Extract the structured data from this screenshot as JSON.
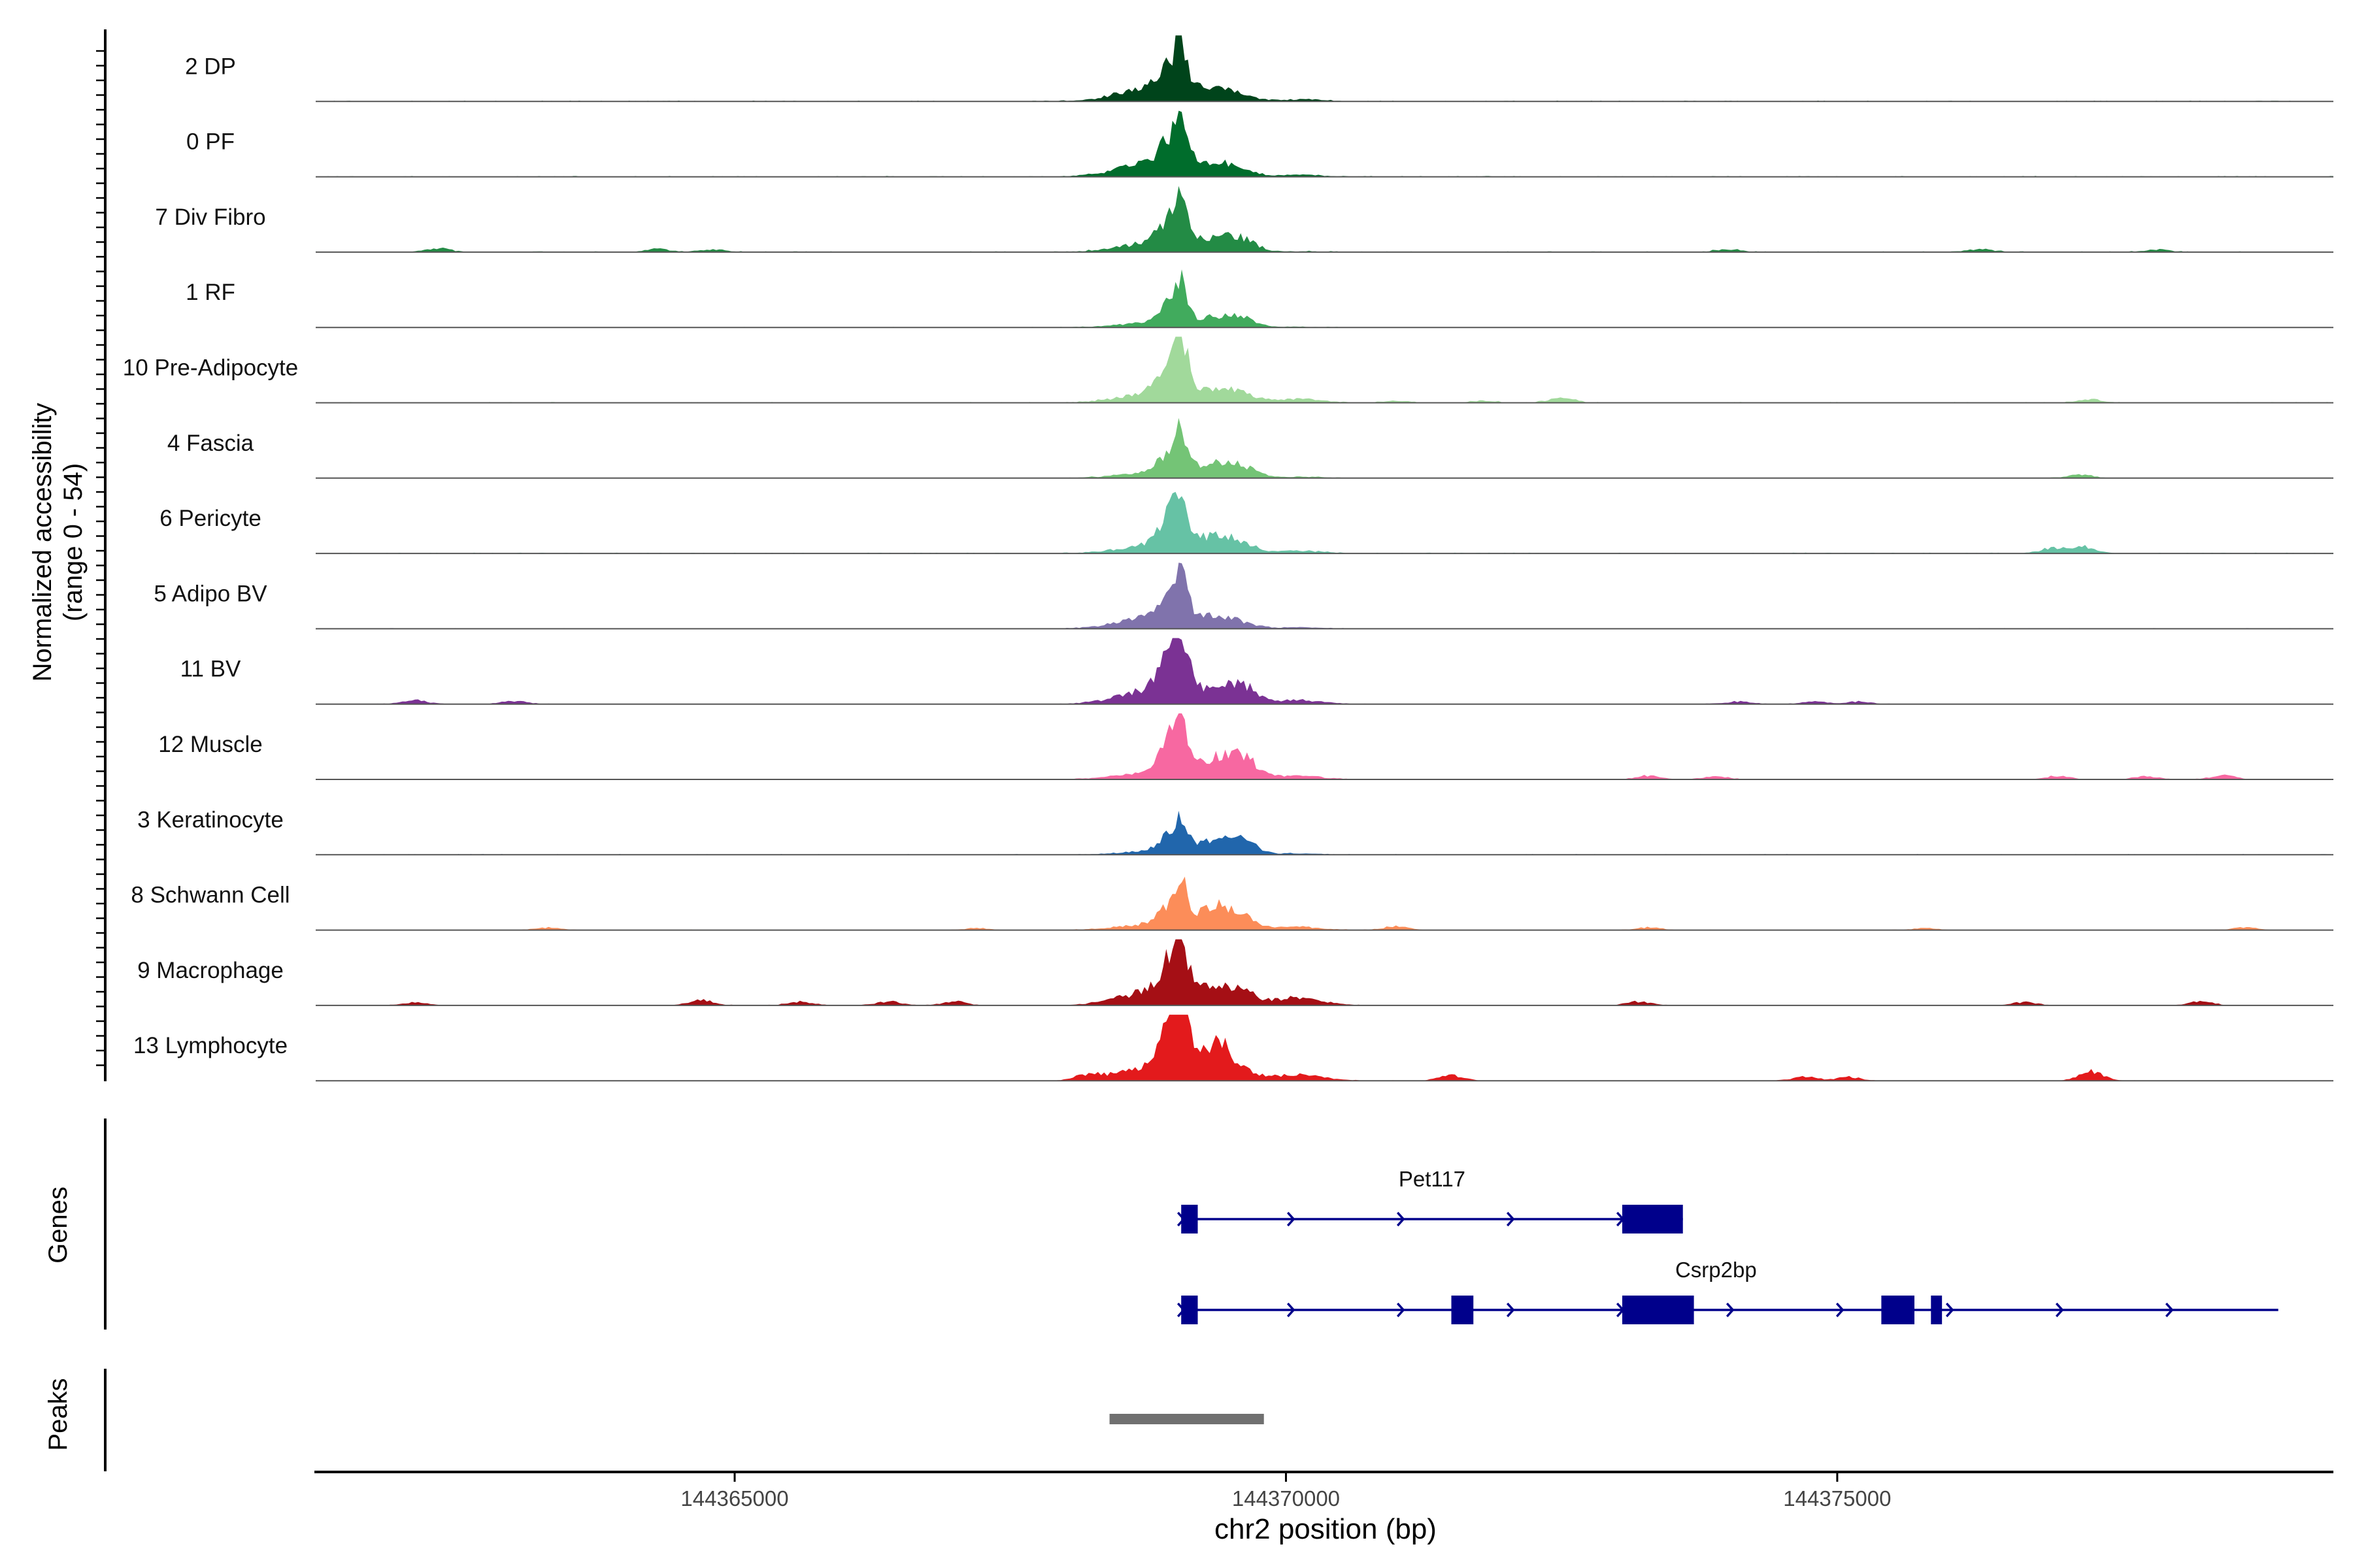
{
  "chart_data": {
    "type": "area",
    "xlabel": "chr2 position (bp)",
    "ylabel_line1": "Normalized accessibility",
    "ylabel_line2": "(range 0 - 54)",
    "y_range": [
      0,
      54
    ],
    "x_range": [
      144361200,
      144379500
    ],
    "x_ticks": [
      144365000,
      144370000,
      144375000
    ],
    "x_tick_labels": [
      "144365000",
      "144370000",
      "144375000"
    ],
    "tracks": [
      {
        "label": "2 DP",
        "color": "#00441b",
        "main": [
          12,
          20,
          20,
          7,
          3,
          1.5
        ],
        "noise": 0.5,
        "side": []
      },
      {
        "label": "0 PF",
        "color": "#006d2c",
        "main": [
          12,
          20,
          18,
          8,
          3,
          1.5
        ],
        "noise": 0.5,
        "side": []
      },
      {
        "label": "7 Div Fibro",
        "color": "#238b45",
        "main": [
          8,
          22,
          25,
          10,
          8,
          0.5
        ],
        "noise": 0.5,
        "side": [
          [
            144362300,
            3
          ],
          [
            144364300,
            2.5
          ],
          [
            144364800,
            2
          ],
          [
            144374000,
            2
          ],
          [
            144376300,
            2.5
          ],
          [
            144377900,
            2
          ]
        ]
      },
      {
        "label": "1 RF",
        "color": "#41ab5d",
        "main": [
          4,
          18,
          20,
          7,
          6,
          0.5
        ],
        "noise": 0.3,
        "side": []
      },
      {
        "label": "10 Pre-Adipocyte",
        "color": "#a1d99b",
        "main": [
          8,
          30,
          30,
          9,
          5,
          3
        ],
        "noise": 0.5,
        "side": [
          [
            144371000,
            1.5
          ],
          [
            144371800,
            1.5
          ],
          [
            144372500,
            4.5
          ],
          [
            144377300,
            2.5
          ]
        ]
      },
      {
        "label": "4 Fascia",
        "color": "#74c476",
        "main": [
          5,
          19,
          20,
          10,
          7,
          1
        ],
        "noise": 0.3,
        "side": [
          [
            144377200,
            3
          ]
        ]
      },
      {
        "label": "6 Pericyte",
        "color": "#66c2a5",
        "main": [
          7,
          25,
          25,
          12,
          6,
          2
        ],
        "noise": 0.5,
        "side": [
          [
            144376950,
            4
          ],
          [
            144377250,
            5
          ]
        ]
      },
      {
        "label": "5 Adipo BV",
        "color": "#8073ac",
        "main": [
          10,
          20,
          20,
          8,
          3,
          1
        ],
        "noise": 0.4,
        "side": []
      },
      {
        "label": "11 BV",
        "color": "#7b3294",
        "main": [
          12,
          30,
          30,
          10,
          12,
          3
        ],
        "noise": 0.3,
        "side": [
          [
            144362100,
            3
          ],
          [
            144363000,
            2.5
          ],
          [
            144374100,
            2
          ],
          [
            144374800,
            2
          ],
          [
            144375200,
            2
          ]
        ]
      },
      {
        "label": "12 Muscle",
        "color": "#f768a1",
        "main": [
          6,
          30,
          32,
          14,
          15,
          3
        ],
        "noise": 0.3,
        "side": [
          [
            144373300,
            3
          ],
          [
            144373900,
            2.5
          ],
          [
            144377000,
            2.5
          ],
          [
            144377800,
            2.5
          ],
          [
            144378500,
            3
          ]
        ]
      },
      {
        "label": "3 Keratinocyte",
        "color": "#2166ac",
        "main": [
          3,
          15,
          15,
          12,
          9,
          1
        ],
        "noise": 0.4,
        "side": []
      },
      {
        "label": "8 Schwann Cell",
        "color": "#fc8d59",
        "main": [
          5,
          18,
          20,
          18,
          7,
          2.5
        ],
        "noise": 0.3,
        "side": [
          [
            144363300,
            2
          ],
          [
            144367200,
            1.5
          ],
          [
            144371000,
            3
          ],
          [
            144373300,
            2
          ],
          [
            144375800,
            1.5
          ],
          [
            144378700,
            2
          ]
        ]
      },
      {
        "label": "9 Macrophage",
        "color": "#a50f15",
        "main": [
          12,
          28,
          28,
          12,
          8,
          6
        ],
        "noise": 0.3,
        "side": [
          [
            144362100,
            2.5
          ],
          [
            144364700,
            4
          ],
          [
            144365600,
            3
          ],
          [
            144366400,
            3
          ],
          [
            144367000,
            3
          ],
          [
            144373200,
            3
          ],
          [
            144376700,
            2.5
          ],
          [
            144378300,
            3
          ]
        ]
      },
      {
        "label": "13 Lymphocyte",
        "color": "#e31a1c",
        "main": [
          12,
          38,
          38,
          25,
          5,
          5
        ],
        "noise": 0.3,
        "side": [
          [
            144368200,
            4
          ],
          [
            144371500,
            4
          ],
          [
            144374700,
            3
          ],
          [
            144375100,
            3
          ],
          [
            144377300,
            7
          ]
        ]
      }
    ],
    "genes": [
      {
        "name": "Pet117",
        "start": 144369050,
        "end": 144373600,
        "strand": "+",
        "exons": [
          [
            144369050,
            144369200
          ],
          [
            144373050,
            144373600
          ]
        ]
      },
      {
        "name": "Csrp2bp",
        "start": 144369050,
        "end": 144379000,
        "strand": "+",
        "exons": [
          [
            144369050,
            144369200
          ],
          [
            144371500,
            144371700
          ],
          [
            144373050,
            144373700
          ],
          [
            144375400,
            144375700
          ],
          [
            144375850,
            144375950
          ]
        ]
      }
    ],
    "peaks": [
      [
        144368400,
        144369800
      ]
    ],
    "genes_panel_label": "Genes",
    "peaks_panel_label": "Peaks"
  },
  "colors": {
    "gene": "#00008b",
    "peak": "#707070",
    "baseline": "#555555",
    "axis": "#000000"
  }
}
